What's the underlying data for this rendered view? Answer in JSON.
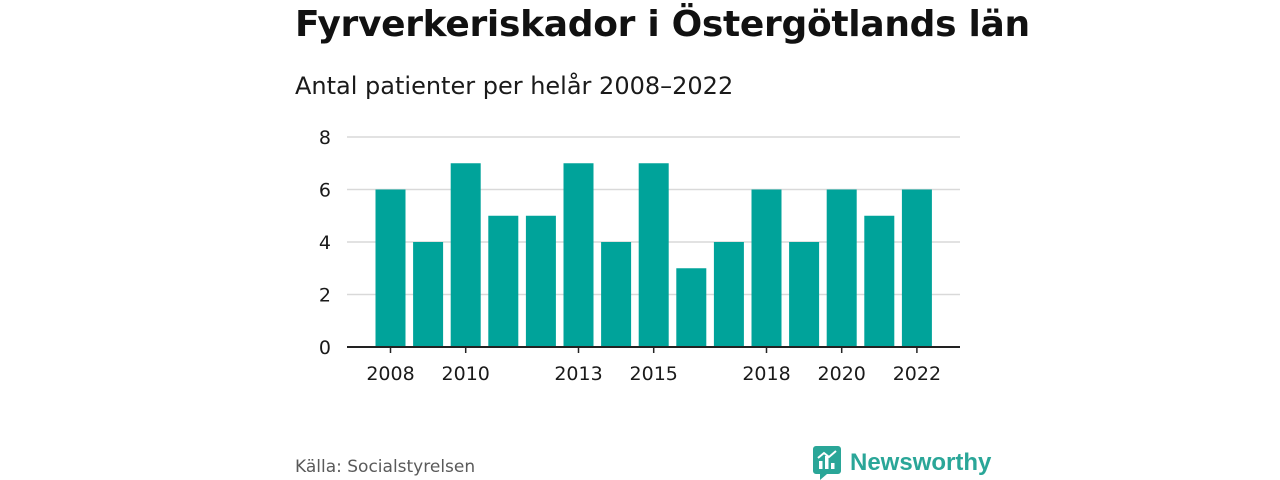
{
  "header": {
    "title": "Fyrverkeriskador i Östergötlands län",
    "subtitle": "Antal patienter per helår 2008–2022"
  },
  "footer": {
    "source": "Källa: Socialstyrelsen",
    "brand": "Newsworthy",
    "brand_icon": "newsworthy-logo-icon"
  },
  "colors": {
    "bar": "#00a39a",
    "grid": "#d9d9d9",
    "axis": "#222222",
    "text": "#1a1a1a",
    "brand": "#2aa698"
  },
  "chart_data": {
    "type": "bar",
    "title": "Fyrverkeriskador i Östergötlands län",
    "subtitle": "Antal patienter per helår 2008–2022",
    "categories": [
      "2008",
      "2009",
      "2010",
      "2011",
      "2012",
      "2013",
      "2014",
      "2015",
      "2016",
      "2017",
      "2018",
      "2019",
      "2020",
      "2021",
      "2022"
    ],
    "values": [
      6,
      4,
      7,
      5,
      5,
      7,
      4,
      7,
      3,
      4,
      6,
      4,
      6,
      5,
      6
    ],
    "x_tick_labels": [
      "2008",
      "2010",
      "2013",
      "2015",
      "2018",
      "2020",
      "2022"
    ],
    "y_ticks": [
      0,
      2,
      4,
      6,
      8
    ],
    "ylim": [
      0,
      8
    ],
    "xlabel": "",
    "ylabel": "",
    "grid": true,
    "legend": false
  }
}
